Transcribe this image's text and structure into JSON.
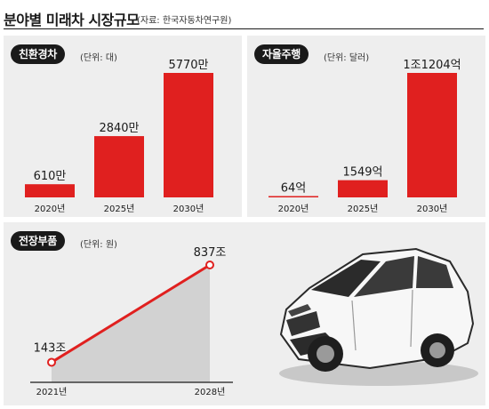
{
  "header": {
    "title": "분야별 미래차 시장규모",
    "source": "(자료: 한국자동차연구원)"
  },
  "colors": {
    "bar": "#e0201f",
    "line": "#e0201f",
    "area": "#d2d2d2",
    "panel": "#eeeeee",
    "badge": "#1a1a1a"
  },
  "chart_data": [
    {
      "type": "bar",
      "badge": "친환경차",
      "unit": "(단위: 대)",
      "categories": [
        "2020년",
        "2025년",
        "2030년"
      ],
      "values": [
        610,
        2840,
        5770
      ],
      "value_labels": [
        "610만",
        "2840만",
        "5770만"
      ],
      "ylim": [
        0,
        5770
      ]
    },
    {
      "type": "bar",
      "badge": "자율주행",
      "unit": "(단위: 달러)",
      "categories": [
        "2020년",
        "2025년",
        "2030년"
      ],
      "values": [
        64,
        1549,
        11204
      ],
      "value_labels": [
        "64억",
        "1549억",
        "1조1204억"
      ],
      "ylim": [
        0,
        11204
      ]
    },
    {
      "type": "area",
      "badge": "전장부품",
      "unit": "(단위: 원)",
      "categories": [
        "2021년",
        "2028년"
      ],
      "values": [
        143,
        837
      ],
      "value_labels": [
        "143조",
        "837조"
      ],
      "ylim": [
        0,
        837
      ]
    }
  ]
}
